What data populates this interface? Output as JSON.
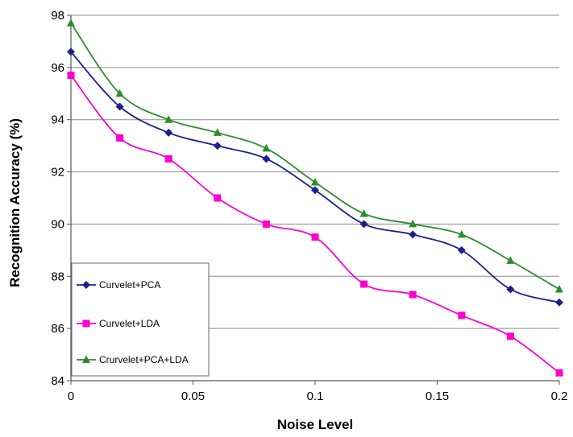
{
  "chart_data": {
    "type": "line",
    "title": "",
    "xlabel": "Noise Level",
    "ylabel": "Recognition Accuracy (%)",
    "xlim": [
      0,
      0.2
    ],
    "ylim": [
      84,
      98
    ],
    "x_ticks": [
      "0",
      "0.05",
      "0.1",
      "0.15",
      "0.2"
    ],
    "y_ticks": [
      "84",
      "86",
      "88",
      "90",
      "92",
      "94",
      "96",
      "98"
    ],
    "x_tick_values": [
      0,
      0.05,
      0.1,
      0.15,
      0.2
    ],
    "y_tick_values": [
      84,
      86,
      88,
      90,
      92,
      94,
      96,
      98
    ],
    "grid": "horizontal",
    "legend_position": "bottom-left",
    "x": [
      0,
      0.02,
      0.04,
      0.06,
      0.08,
      0.1,
      0.12,
      0.14,
      0.16,
      0.18,
      0.2
    ],
    "series": [
      {
        "name": "Curvelet+PCA",
        "color": "#1f1f8f",
        "marker": "diamond",
        "values": [
          96.6,
          94.5,
          93.5,
          93.0,
          92.5,
          91.3,
          90.0,
          89.6,
          89.0,
          87.5,
          87.0
        ]
      },
      {
        "name": "Curvelet+LDA",
        "color": "#ff00cc",
        "marker": "square",
        "values": [
          95.7,
          93.3,
          92.5,
          91.0,
          90.0,
          89.5,
          87.7,
          87.3,
          86.5,
          85.7,
          84.3
        ]
      },
      {
        "name": "Crurvelet+PCA+LDA",
        "color": "#2e8b2e",
        "marker": "triangle",
        "values": [
          97.7,
          95.0,
          94.0,
          93.5,
          92.9,
          91.6,
          90.4,
          90.0,
          89.6,
          88.6,
          87.5
        ]
      }
    ]
  }
}
